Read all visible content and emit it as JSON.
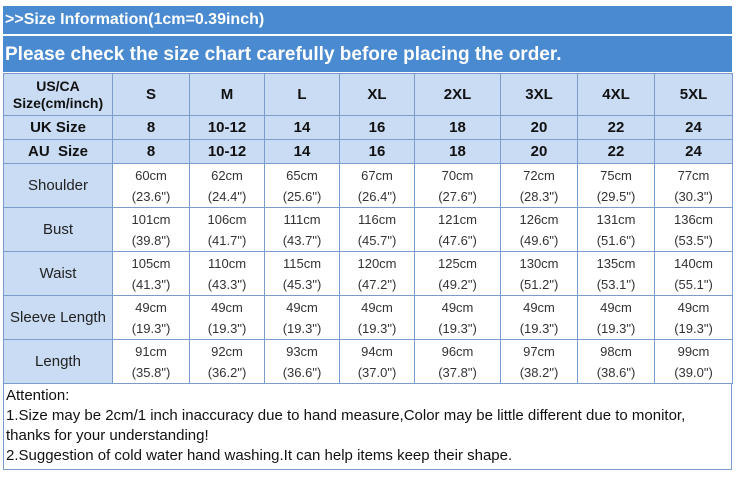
{
  "header": {
    "size_info": ">>Size Information(1cm=0.39inch)",
    "notice": "Please check the size chart carefully before placing the order."
  },
  "table": {
    "corner_label_line1": "US/CA",
    "corner_label_line2": "Size(cm/inch)",
    "sizes": [
      "S",
      "M",
      "L",
      "XL",
      "2XL",
      "3XL",
      "4XL",
      "5XL"
    ],
    "uk_label": "UK Size",
    "uk": [
      "8",
      "10-12",
      "14",
      "16",
      "18",
      "20",
      "22",
      "24"
    ],
    "au_label": "AU  Size",
    "au": [
      "8",
      "10-12",
      "14",
      "16",
      "18",
      "20",
      "22",
      "24"
    ],
    "rows": [
      {
        "label": "Shoulder",
        "cm": [
          "60cm",
          "62cm",
          "65cm",
          "67cm",
          "70cm",
          "72cm",
          "75cm",
          "77cm"
        ],
        "inch": [
          "(23.6\")",
          "(24.4\")",
          "(25.6\")",
          "(26.4\")",
          "(27.6\")",
          "(28.3\")",
          "(29.5\")",
          "(30.3\")"
        ]
      },
      {
        "label": "Bust",
        "cm": [
          "101cm",
          "106cm",
          "111cm",
          "116cm",
          "121cm",
          "126cm",
          "131cm",
          "136cm"
        ],
        "inch": [
          "(39.8\")",
          "(41.7\")",
          "(43.7\")",
          "(45.7\")",
          "(47.6\")",
          "(49.6\")",
          "(51.6\")",
          "(53.5\")"
        ]
      },
      {
        "label": "Waist",
        "cm": [
          "105cm",
          "110cm",
          "115cm",
          "120cm",
          "125cm",
          "130cm",
          "135cm",
          "140cm"
        ],
        "inch": [
          "(41.3\")",
          "(43.3\")",
          "(45.3\")",
          "(47.2\")",
          "(49.2\")",
          "(51.2\")",
          "(53.1\")",
          "(55.1\")"
        ]
      },
      {
        "label": "Sleeve Length",
        "cm": [
          "49cm",
          "49cm",
          "49cm",
          "49cm",
          "49cm",
          "49cm",
          "49cm",
          "49cm"
        ],
        "inch": [
          "(19.3\")",
          "(19.3\")",
          "(19.3\")",
          "(19.3\")",
          "(19.3\")",
          "(19.3\")",
          "(19.3\")",
          "(19.3\")"
        ]
      },
      {
        "label": "Length",
        "cm": [
          "91cm",
          "92cm",
          "93cm",
          "94cm",
          "96cm",
          "97cm",
          "98cm",
          "99cm"
        ],
        "inch": [
          "(35.8\")",
          "(36.2\")",
          "(36.6\")",
          "(37.0\")",
          "(37.8\")",
          "(38.2\")",
          "(38.6\")",
          "(39.0\")"
        ]
      }
    ]
  },
  "notes": {
    "title": "Attention:",
    "line1": "1.Size may be 2cm/1 inch inaccuracy due to hand measure,Color may be little different due to monitor,",
    "line2": "thanks for your understanding!",
    "line3": "2.Suggestion of cold water hand washing.It can help items keep their shape."
  },
  "colors": {
    "header_bar": "#4a8ad0",
    "header_cell": "#c9dcf3",
    "border": "#7a9ccc"
  }
}
